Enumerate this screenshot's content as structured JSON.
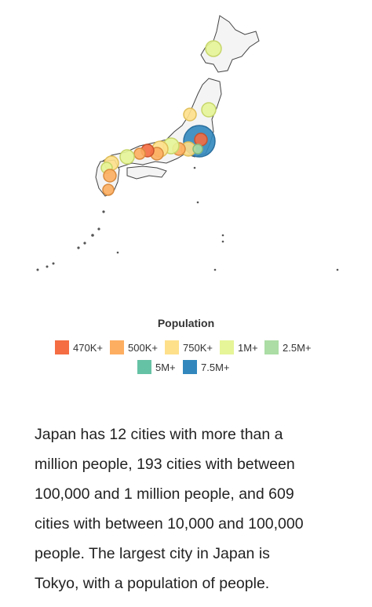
{
  "legend": {
    "title": "Population",
    "items": [
      {
        "label": "470K+",
        "color": "#f46d43"
      },
      {
        "label": "500K+",
        "color": "#fdae61"
      },
      {
        "label": "750K+",
        "color": "#fee08b"
      },
      {
        "label": "1M+",
        "color": "#e6f598"
      },
      {
        "label": "2.5M+",
        "color": "#abdda4"
      },
      {
        "label": "5M+",
        "color": "#66c2a5"
      },
      {
        "label": "7.5M+",
        "color": "#3288bd"
      }
    ]
  },
  "paragraph": {
    "lines": [
      "Japan has 12 cities with more than a",
      "million people, 193 cities with between",
      "100,000 and 1 million people, and 609",
      "cities with between 10,000 and 100,000",
      "people. The largest city in Japan is",
      "Tokyo, with a population of people."
    ]
  }
}
